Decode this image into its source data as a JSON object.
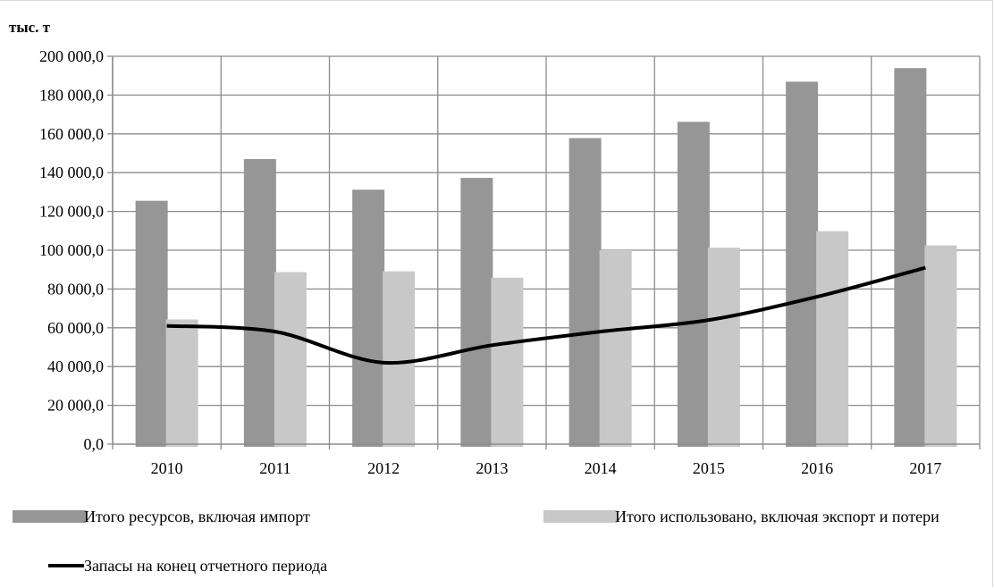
{
  "chart_data": {
    "type": "bar",
    "title": "",
    "xlabel": "",
    "ylabel": "тыс. т",
    "categories": [
      "2010",
      "2011",
      "2012",
      "2013",
      "2014",
      "2015",
      "2016",
      "2017"
    ],
    "ylim": [
      0,
      200000
    ],
    "y_ticks": [
      "0,0",
      "20 000,0",
      "40 000,0",
      "60 000,0",
      "80 000,0",
      "100 000,0",
      "120 000,0",
      "140 000,0",
      "160 000,0",
      "180 000,0",
      "200 000,0"
    ],
    "grid": true,
    "legend_position": "bottom",
    "series": [
      {
        "name": "Итого ресурсов, включая импорт",
        "kind": "bar",
        "color": "#969696",
        "values": [
          125500,
          147000,
          131200,
          137300,
          157800,
          166200,
          186900,
          193900
        ]
      },
      {
        "name": "Итого использовано, включая экспорт и потери",
        "kind": "bar",
        "color": "#c8c8c8",
        "values": [
          64300,
          88700,
          89100,
          85800,
          100000,
          101300,
          109800,
          102500
        ]
      },
      {
        "name": "Запасы на конец отчетного периода",
        "kind": "line",
        "color": "#000000",
        "values": [
          61000,
          58000,
          42000,
          51000,
          58000,
          64000,
          76000,
          91000
        ]
      }
    ]
  }
}
